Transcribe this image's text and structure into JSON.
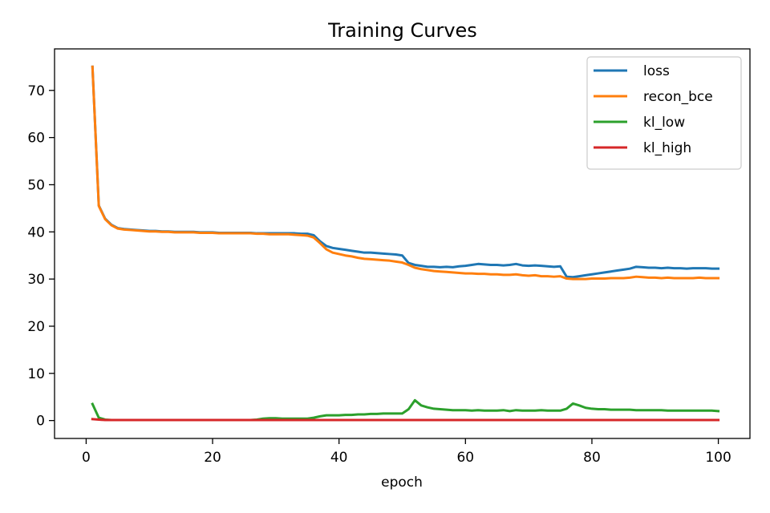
{
  "chart_data": {
    "type": "line",
    "title": "Training Curves",
    "xlabel": "epoch",
    "ylabel": "",
    "xlim": [
      -5,
      105
    ],
    "ylim": [
      -3.8,
      78.8
    ],
    "xticks": [
      0,
      20,
      40,
      60,
      80,
      100
    ],
    "yticks": [
      0,
      10,
      20,
      30,
      40,
      50,
      60,
      70
    ],
    "grid": false,
    "legend_position": "top-right",
    "x": [
      1,
      2,
      3,
      4,
      5,
      6,
      7,
      8,
      9,
      10,
      11,
      12,
      13,
      14,
      15,
      16,
      17,
      18,
      19,
      20,
      21,
      22,
      23,
      24,
      25,
      26,
      27,
      28,
      29,
      30,
      31,
      32,
      33,
      34,
      35,
      36,
      37,
      38,
      39,
      40,
      41,
      42,
      43,
      44,
      45,
      46,
      47,
      48,
      49,
      50,
      51,
      52,
      53,
      54,
      55,
      56,
      57,
      58,
      59,
      60,
      61,
      62,
      63,
      64,
      65,
      66,
      67,
      68,
      69,
      70,
      71,
      72,
      73,
      74,
      75,
      76,
      77,
      78,
      79,
      80,
      81,
      82,
      83,
      84,
      85,
      86,
      87,
      88,
      89,
      90,
      91,
      92,
      93,
      94,
      95,
      96,
      97,
      98,
      99,
      100
    ],
    "series": [
      {
        "name": "loss",
        "color": "#1f77b4",
        "values": [
          75.0,
          45.6,
          42.8,
          41.5,
          40.8,
          40.6,
          40.5,
          40.4,
          40.3,
          40.2,
          40.2,
          40.1,
          40.1,
          40.0,
          40.0,
          40.0,
          40.0,
          39.9,
          39.9,
          39.9,
          39.8,
          39.8,
          39.8,
          39.8,
          39.8,
          39.8,
          39.7,
          39.7,
          39.7,
          39.7,
          39.7,
          39.7,
          39.7,
          39.6,
          39.6,
          39.3,
          38.0,
          37.0,
          36.6,
          36.4,
          36.2,
          36.0,
          35.8,
          35.6,
          35.6,
          35.5,
          35.4,
          35.3,
          35.2,
          35.0,
          33.4,
          33.0,
          32.8,
          32.6,
          32.6,
          32.5,
          32.6,
          32.5,
          32.7,
          32.8,
          33.0,
          33.2,
          33.1,
          33.0,
          33.0,
          32.9,
          33.0,
          33.2,
          32.9,
          32.8,
          32.9,
          32.8,
          32.7,
          32.6,
          32.7,
          30.5,
          30.4,
          30.6,
          30.8,
          31.0,
          31.2,
          31.4,
          31.6,
          31.8,
          32.0,
          32.2,
          32.6,
          32.5,
          32.4,
          32.4,
          32.3,
          32.4,
          32.3,
          32.3,
          32.2,
          32.3,
          32.3,
          32.3,
          32.2,
          32.2
        ]
      },
      {
        "name": "recon_bce",
        "color": "#ff7f0e",
        "values": [
          75.0,
          45.5,
          42.7,
          41.4,
          40.7,
          40.5,
          40.4,
          40.3,
          40.2,
          40.1,
          40.1,
          40.0,
          40.0,
          39.9,
          39.9,
          39.9,
          39.9,
          39.8,
          39.8,
          39.8,
          39.7,
          39.7,
          39.7,
          39.7,
          39.7,
          39.7,
          39.6,
          39.6,
          39.5,
          39.5,
          39.5,
          39.5,
          39.4,
          39.3,
          39.2,
          38.8,
          37.6,
          36.3,
          35.6,
          35.3,
          35.0,
          34.8,
          34.5,
          34.3,
          34.2,
          34.1,
          34.0,
          33.9,
          33.7,
          33.5,
          33.0,
          32.4,
          32.1,
          31.9,
          31.7,
          31.6,
          31.5,
          31.4,
          31.3,
          31.2,
          31.2,
          31.1,
          31.1,
          31.0,
          31.0,
          30.9,
          30.9,
          31.0,
          30.8,
          30.7,
          30.8,
          30.6,
          30.6,
          30.5,
          30.6,
          30.1,
          30.0,
          30.0,
          30.0,
          30.1,
          30.1,
          30.1,
          30.2,
          30.2,
          30.2,
          30.3,
          30.5,
          30.4,
          30.3,
          30.3,
          30.2,
          30.3,
          30.2,
          30.2,
          30.2,
          30.2,
          30.3,
          30.2,
          30.2,
          30.2
        ]
      },
      {
        "name": "kl_low",
        "color": "#2ca02c",
        "values": [
          3.5,
          0.6,
          0.2,
          0.1,
          0.1,
          0.1,
          0.1,
          0.1,
          0.1,
          0.1,
          0.1,
          0.1,
          0.1,
          0.1,
          0.1,
          0.1,
          0.1,
          0.1,
          0.1,
          0.1,
          0.1,
          0.1,
          0.1,
          0.1,
          0.1,
          0.1,
          0.2,
          0.4,
          0.5,
          0.5,
          0.4,
          0.4,
          0.4,
          0.4,
          0.4,
          0.6,
          0.9,
          1.1,
          1.1,
          1.1,
          1.2,
          1.2,
          1.3,
          1.3,
          1.4,
          1.4,
          1.5,
          1.5,
          1.5,
          1.5,
          2.4,
          4.3,
          3.2,
          2.8,
          2.5,
          2.4,
          2.3,
          2.2,
          2.2,
          2.2,
          2.1,
          2.2,
          2.1,
          2.1,
          2.1,
          2.2,
          2.0,
          2.2,
          2.1,
          2.1,
          2.1,
          2.2,
          2.1,
          2.1,
          2.1,
          2.5,
          3.6,
          3.2,
          2.7,
          2.5,
          2.4,
          2.4,
          2.3,
          2.3,
          2.3,
          2.3,
          2.2,
          2.2,
          2.2,
          2.2,
          2.2,
          2.1,
          2.1,
          2.1,
          2.1,
          2.1,
          2.1,
          2.1,
          2.1,
          2.0
        ]
      },
      {
        "name": "kl_high",
        "color": "#d62728",
        "values": [
          0.3,
          0.2,
          0.1,
          0.1,
          0.1,
          0.1,
          0.1,
          0.1,
          0.1,
          0.1,
          0.1,
          0.1,
          0.1,
          0.1,
          0.1,
          0.1,
          0.1,
          0.1,
          0.1,
          0.1,
          0.1,
          0.1,
          0.1,
          0.1,
          0.1,
          0.1,
          0.1,
          0.1,
          0.1,
          0.1,
          0.1,
          0.1,
          0.1,
          0.1,
          0.1,
          0.1,
          0.1,
          0.1,
          0.1,
          0.1,
          0.1,
          0.1,
          0.1,
          0.1,
          0.1,
          0.1,
          0.1,
          0.1,
          0.1,
          0.1,
          0.1,
          0.1,
          0.1,
          0.1,
          0.1,
          0.1,
          0.1,
          0.1,
          0.1,
          0.1,
          0.1,
          0.1,
          0.1,
          0.1,
          0.1,
          0.1,
          0.1,
          0.1,
          0.1,
          0.1,
          0.1,
          0.1,
          0.1,
          0.1,
          0.1,
          0.1,
          0.1,
          0.1,
          0.1,
          0.1,
          0.1,
          0.1,
          0.1,
          0.1,
          0.1,
          0.1,
          0.1,
          0.1,
          0.1,
          0.1,
          0.1,
          0.1,
          0.1,
          0.1,
          0.1,
          0.1,
          0.1,
          0.1,
          0.1,
          0.1
        ]
      }
    ]
  }
}
